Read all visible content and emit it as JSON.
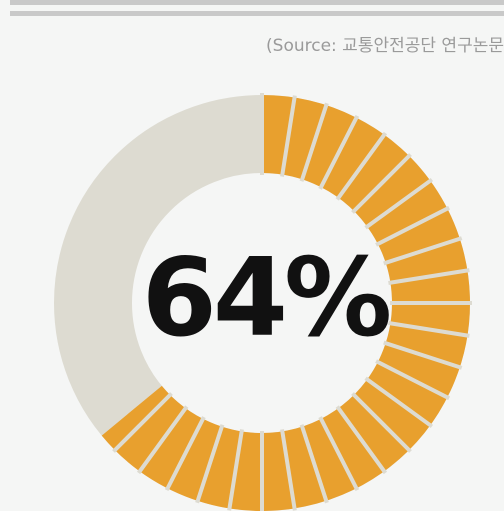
{
  "chart_data": {
    "type": "donut",
    "source": "(Source: 교통안전공단 연구논문",
    "values": [
      64
    ],
    "value_labels": [
      "64%"
    ],
    "color": "#e8a02e",
    "track_color": "#dddbd1"
  }
}
